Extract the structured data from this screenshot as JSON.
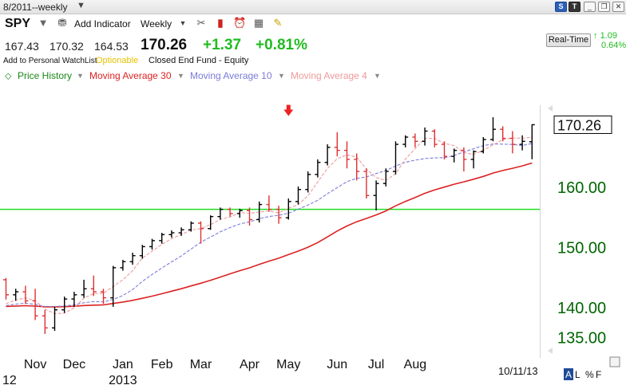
{
  "window": {
    "title": "8/2011--weekly"
  },
  "toolbar": {
    "symbol": "SPY",
    "add_indicator": "Add Indicator",
    "period": "Weekly"
  },
  "quote": {
    "open": "167.43",
    "high": "170.32",
    "low": "164.53",
    "last": "170.26",
    "change": "+1.37",
    "change_pct": "+0.81%"
  },
  "realtime": {
    "label": "Real-Time",
    "change": "1.09",
    "change_pct": "0.64%"
  },
  "info": {
    "watchlist": "Add to Personal WatchList",
    "optionable": "Optionable",
    "fund_type": "Closed End Fund - Equity"
  },
  "legend": {
    "price_history": "Price History",
    "ma30": "Moving Average 30",
    "ma10": "Moving Average 10",
    "ma4": "Moving Average 4"
  },
  "colors": {
    "up": "#000000",
    "down": "#e03030",
    "ma30": "#dd2222",
    "ma10": "#7b7bd9",
    "ma4": "#ee9a9a",
    "support": "#22dd22",
    "axis_text": "#006600",
    "arrow": "#ee2222"
  },
  "chart_data": {
    "type": "bar",
    "subtype": "ohlc-weekly",
    "title": "",
    "xlabel": "",
    "ylabel": "",
    "ylim": [
      133.5,
      173.5
    ],
    "y_ticks": [
      "135.00",
      "140.00",
      "150.00",
      "160.00"
    ],
    "last_price_label": "170.26",
    "date_label": "10/11/13",
    "x_month_labels": [
      {
        "label": "Nov",
        "year": "12",
        "index": 3
      },
      {
        "label": "Dec",
        "year": "",
        "index": 7
      },
      {
        "label": "Jan",
        "year": "2013",
        "index": 12
      },
      {
        "label": "Feb",
        "year": "",
        "index": 16
      },
      {
        "label": "Mar",
        "year": "",
        "index": 20
      },
      {
        "label": "Apr",
        "year": "",
        "index": 25
      },
      {
        "label": "May",
        "year": "",
        "index": 29
      },
      {
        "label": "Jun",
        "year": "",
        "index": 34
      },
      {
        "label": "Jul",
        "year": "",
        "index": 38
      },
      {
        "label": "Aug",
        "year": "",
        "index": 42
      }
    ],
    "horizontal_line": {
      "value": 156.2,
      "color": "#22dd22"
    },
    "arrow_annotation": {
      "index": 29,
      "value": 172.5,
      "direction": "down"
    },
    "ohlc": [
      [
        144.5,
        144.8,
        141.2,
        142.0
      ],
      [
        142.0,
        143.0,
        141.0,
        142.5
      ],
      [
        142.5,
        143.5,
        140.5,
        141.0
      ],
      [
        141.0,
        143.0,
        137.8,
        138.5
      ],
      [
        138.5,
        139.5,
        135.5,
        136.5
      ],
      [
        136.5,
        140.0,
        136.0,
        139.5
      ],
      [
        139.5,
        141.7,
        139.0,
        141.3
      ],
      [
        141.3,
        142.5,
        140.0,
        142.0
      ],
      [
        142.0,
        144.5,
        141.5,
        143.0
      ],
      [
        143.0,
        145.2,
        141.8,
        142.5
      ],
      [
        142.5,
        143.0,
        140.5,
        141.5
      ],
      [
        141.5,
        146.8,
        140.0,
        146.5
      ],
      [
        146.5,
        147.8,
        146.0,
        147.5
      ],
      [
        147.5,
        149.0,
        147.0,
        148.5
      ],
      [
        148.5,
        150.3,
        148.0,
        150.0
      ],
      [
        150.0,
        151.3,
        149.5,
        151.0
      ],
      [
        151.0,
        152.3,
        150.5,
        152.0
      ],
      [
        152.0,
        152.7,
        151.5,
        152.3
      ],
      [
        152.3,
        153.2,
        151.8,
        152.8
      ],
      [
        152.8,
        154.2,
        152.5,
        153.9
      ],
      [
        153.9,
        154.2,
        150.5,
        153.0
      ],
      [
        153.0,
        155.2,
        152.8,
        155.0
      ],
      [
        155.0,
        156.5,
        154.5,
        156.2
      ],
      [
        156.2,
        156.5,
        155.0,
        155.5
      ],
      [
        155.5,
        156.3,
        154.8,
        156.0
      ],
      [
        156.0,
        156.5,
        153.5,
        154.5
      ],
      [
        154.5,
        157.5,
        154.0,
        157.0
      ],
      [
        157.0,
        158.5,
        155.8,
        156.2
      ],
      [
        156.2,
        156.8,
        153.8,
        154.8
      ],
      [
        154.8,
        158.0,
        154.5,
        157.5
      ],
      [
        157.5,
        160.0,
        157.0,
        159.5
      ],
      [
        159.5,
        162.5,
        159.0,
        162.0
      ],
      [
        162.0,
        164.5,
        161.5,
        164.0
      ],
      [
        164.0,
        167.0,
        163.5,
        166.5
      ],
      [
        166.5,
        169.0,
        165.0,
        166.0
      ],
      [
        166.0,
        167.5,
        163.0,
        164.5
      ],
      [
        164.5,
        165.5,
        161.0,
        162.5
      ],
      [
        162.5,
        163.0,
        158.0,
        158.5
      ],
      [
        158.5,
        161.0,
        156.0,
        160.5
      ],
      [
        160.5,
        163.0,
        160.0,
        162.5
      ],
      [
        162.5,
        167.5,
        162.0,
        167.0
      ],
      [
        167.0,
        168.5,
        166.5,
        168.2
      ],
      [
        168.2,
        168.8,
        166.5,
        167.5
      ],
      [
        167.5,
        169.8,
        166.8,
        169.2
      ],
      [
        169.2,
        169.5,
        166.5,
        167.0
      ],
      [
        167.0,
        167.5,
        164.5,
        165.0
      ],
      [
        165.0,
        166.3,
        164.0,
        166.0
      ],
      [
        166.0,
        166.5,
        162.5,
        164.5
      ],
      [
        164.5,
        166.0,
        163.0,
        165.8
      ],
      [
        165.8,
        168.2,
        165.5,
        167.8
      ],
      [
        167.8,
        171.5,
        167.5,
        169.5
      ],
      [
        169.5,
        170.0,
        167.5,
        168.0
      ],
      [
        168.0,
        169.2,
        165.5,
        167.0
      ],
      [
        167.0,
        168.5,
        166.0,
        167.5
      ],
      [
        167.43,
        170.32,
        164.53,
        170.26
      ]
    ]
  }
}
